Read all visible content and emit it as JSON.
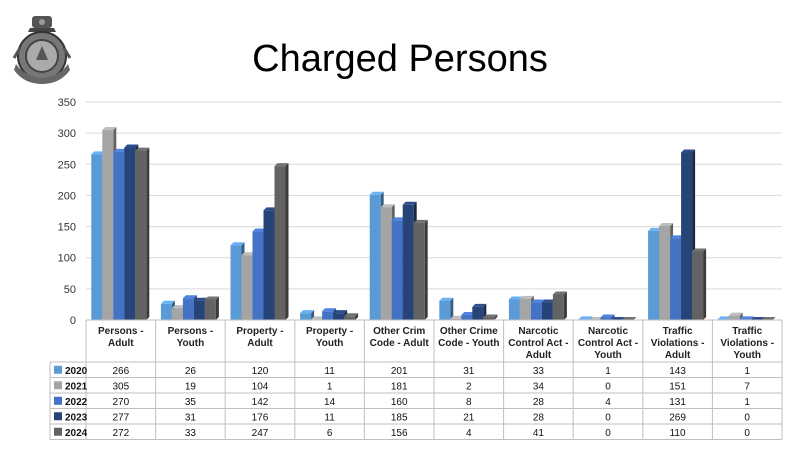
{
  "page": {
    "title": "Charged Persons"
  },
  "chart_data": {
    "type": "bar",
    "categories": [
      "Persons - Adult",
      "Persons - Youth",
      "Property - Adult",
      "Property - Youth",
      "Other Crim Code - Adult",
      "Other Crime Code - Youth",
      "Narcotic Control Act - Adult",
      "Narcotic Control Act - Youth",
      "Traffic Violations - Adult",
      "Traffic Violations - Youth"
    ],
    "category_lines": [
      [
        "Persons -",
        "Adult"
      ],
      [
        "Persons -",
        "Youth"
      ],
      [
        "Property -",
        "Adult"
      ],
      [
        "Property -",
        "Youth"
      ],
      [
        "Other Crim",
        "Code - Adult"
      ],
      [
        "Other Crime",
        "Code - Youth"
      ],
      [
        "Narcotic",
        "Control Act -",
        "Adult"
      ],
      [
        "Narcotic",
        "Control Act -",
        "Youth"
      ],
      [
        "Traffic",
        "Violations -",
        "Adult"
      ],
      [
        "Traffic",
        "Violations -",
        "Youth"
      ]
    ],
    "series": [
      {
        "name": "2020",
        "color": "#5b9bd5",
        "values": [
          266,
          26,
          120,
          11,
          201,
          31,
          33,
          1,
          143,
          1
        ]
      },
      {
        "name": "2021",
        "color": "#a5a5a5",
        "values": [
          305,
          19,
          104,
          1,
          181,
          2,
          34,
          0,
          151,
          7
        ]
      },
      {
        "name": "2022",
        "color": "#4472c4",
        "values": [
          270,
          35,
          142,
          14,
          160,
          8,
          28,
          4,
          131,
          1
        ]
      },
      {
        "name": "2023",
        "color": "#264478",
        "values": [
          277,
          31,
          176,
          11,
          185,
          21,
          28,
          0,
          269,
          0
        ]
      },
      {
        "name": "2024",
        "color": "#636363",
        "values": [
          272,
          33,
          247,
          6,
          156,
          4,
          41,
          0,
          110,
          0
        ]
      }
    ],
    "ylim": [
      0,
      350
    ],
    "yticks": [
      0,
      50,
      100,
      150,
      200,
      250,
      300,
      350
    ],
    "grid": true,
    "legend": "data table"
  }
}
